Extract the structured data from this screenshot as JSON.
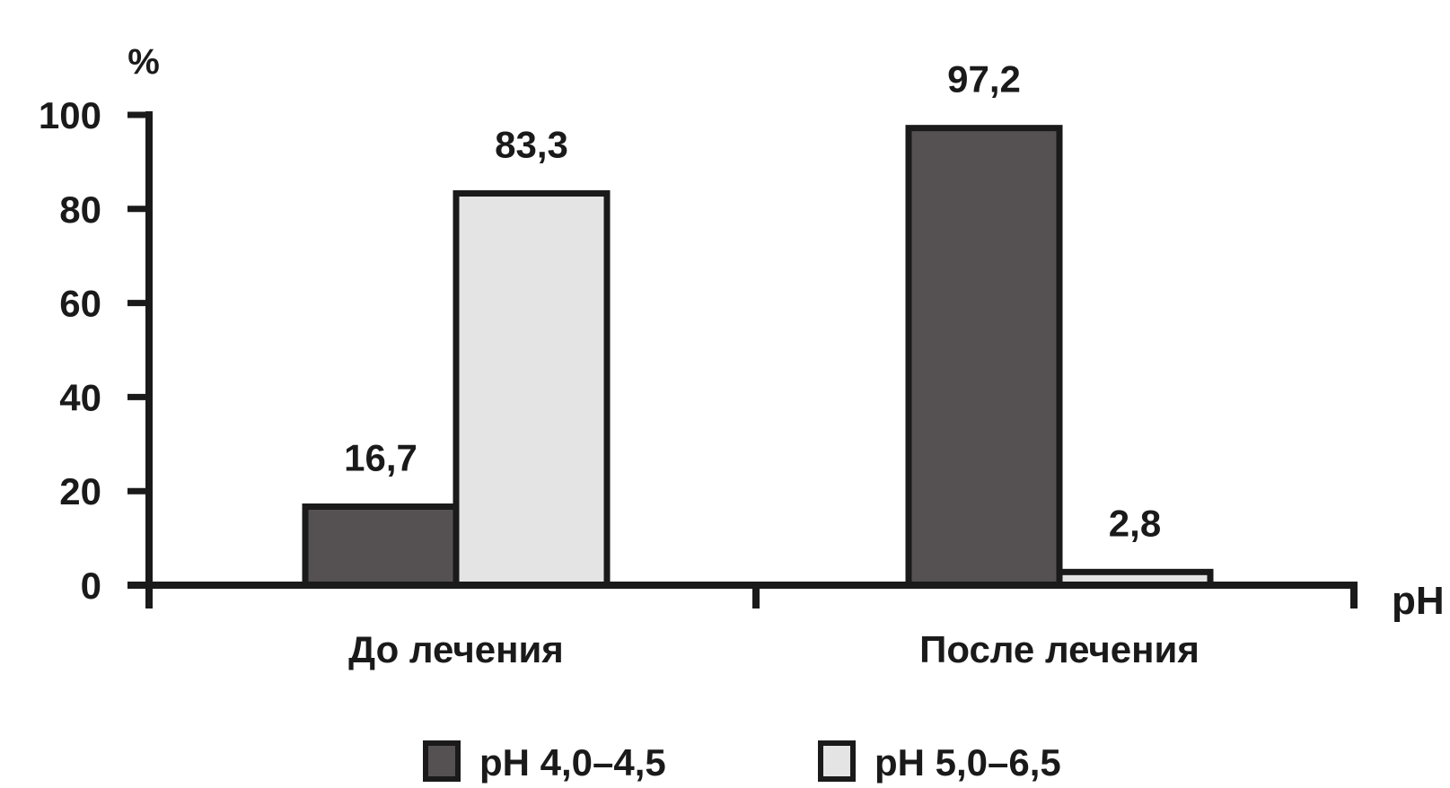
{
  "chart_data": {
    "type": "bar",
    "title": "",
    "ylabel": "%",
    "xlabel": "pH",
    "ylim": [
      0,
      100
    ],
    "yticks": [
      "0",
      "20",
      "40",
      "60",
      "80",
      "100"
    ],
    "categories": [
      "До лечения",
      "После лечения"
    ],
    "series": [
      {
        "name": "pH 4,0–4,5",
        "values": [
          16.7,
          97.2
        ],
        "labels": [
          "16,7",
          "97,2"
        ],
        "color": "#555152"
      },
      {
        "name": "pH 5,0–6,5",
        "values": [
          83.3,
          2.8
        ],
        "labels": [
          "83,3",
          "2,8"
        ],
        "color": "#e4e4e4"
      }
    ],
    "grid": false,
    "legend": "bottom",
    "bar_outline": "#1a1a1a"
  }
}
